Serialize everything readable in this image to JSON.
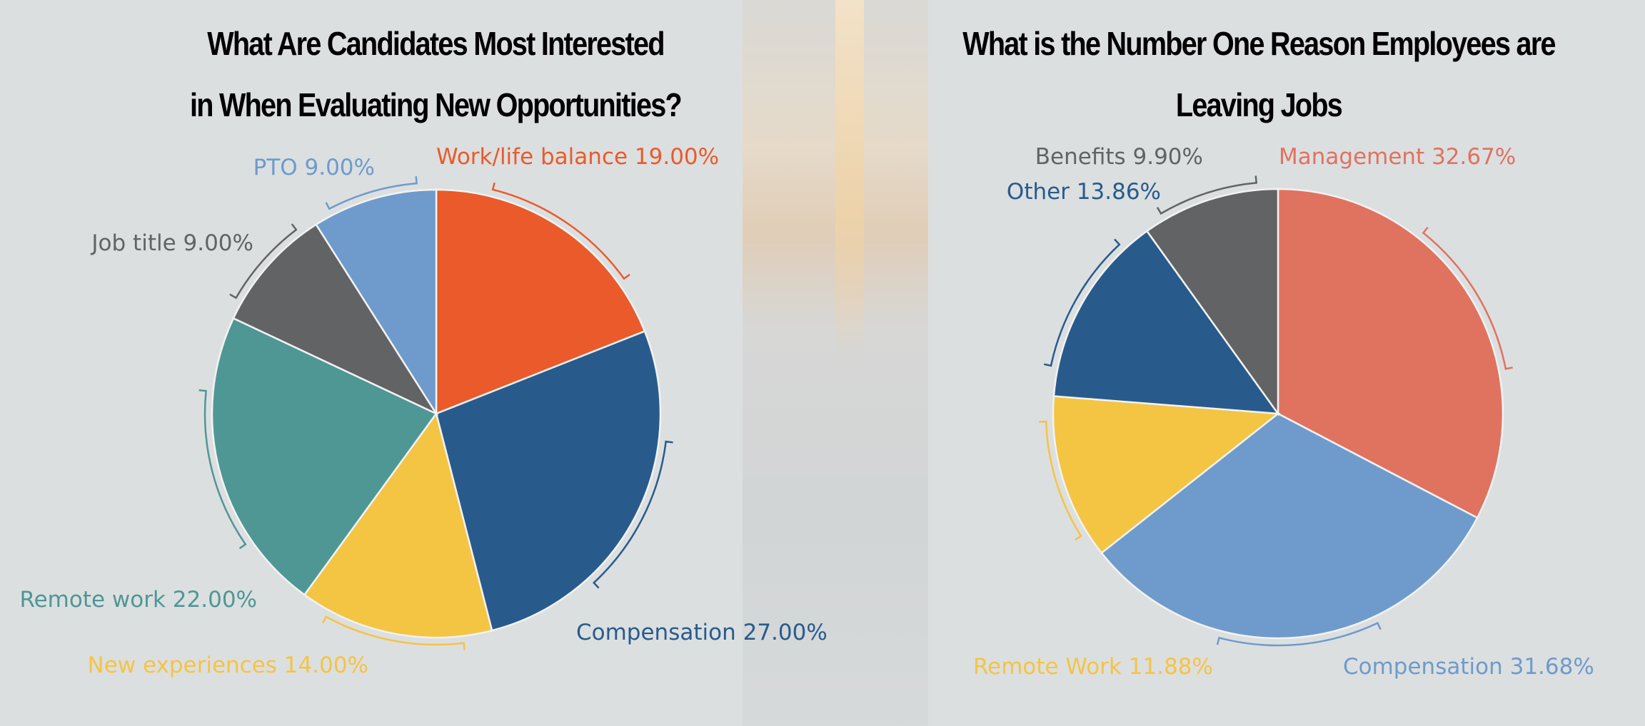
{
  "chart_data": [
    {
      "type": "pie",
      "title_lines": [
        "What Are Candidates Most Interested",
        "in When Evaluating New Opportunities?"
      ],
      "start": "top",
      "direction": "clockwise",
      "slices": [
        {
          "label": "Work/life balance",
          "value": 19.0,
          "text": "Work/life balance 19.00%",
          "color": "#EA5A2B"
        },
        {
          "label": "Compensation",
          "value": 27.0,
          "text": "Compensation 27.00%",
          "color": "#285B8C"
        },
        {
          "label": "New experiences",
          "value": 14.0,
          "text": "New experiences 14.00%",
          "color": "#F4C443"
        },
        {
          "label": "Remote work",
          "value": 22.0,
          "text": "Remote work 22.00%",
          "color": "#4F9795"
        },
        {
          "label": "Job title",
          "value": 9.0,
          "text": "Job title 9.00%",
          "color": "#626365"
        },
        {
          "label": "PTO",
          "value": 9.0,
          "text": "PTO 9.00%",
          "color": "#6E9BCB"
        }
      ]
    },
    {
      "type": "pie",
      "title_lines": [
        "What is the Number One Reason Employees are",
        "Leaving Jobs"
      ],
      "start": "top",
      "direction": "clockwise",
      "slices": [
        {
          "label": "Management",
          "value": 32.67,
          "text": "Management 32.67%",
          "color": "#E07260"
        },
        {
          "label": "Compensation",
          "value": 31.68,
          "text": "Compensation 31.68%",
          "color": "#6E9BCB"
        },
        {
          "label": "Remote Work",
          "value": 11.88,
          "text": "Remote Work 11.88%",
          "color": "#F4C443"
        },
        {
          "label": "Other",
          "value": 13.86,
          "text": "Other 13.86%",
          "color": "#285B8C"
        },
        {
          "label": "Benefits",
          "value": 9.9,
          "text": "Benefits 9.90%",
          "color": "#626365"
        }
      ]
    }
  ]
}
